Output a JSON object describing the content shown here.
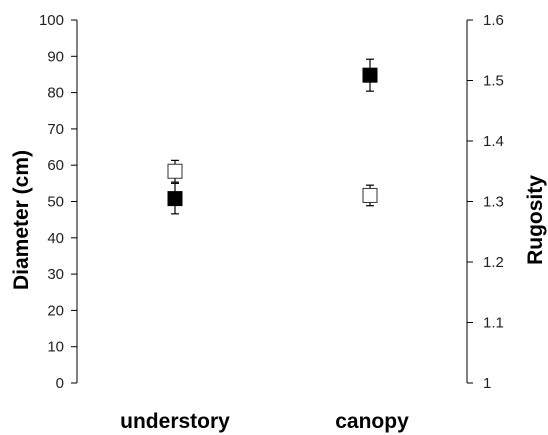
{
  "chart_data": {
    "type": "scatter",
    "categories": [
      "understory",
      "canopy"
    ],
    "left_axis": {
      "label": "Diameter (cm)",
      "ylim": [
        0,
        100
      ],
      "ticks": [
        0,
        10,
        20,
        30,
        40,
        50,
        60,
        70,
        80,
        90,
        100
      ],
      "tick_labels": [
        "0",
        "10",
        "20",
        "30",
        "40",
        "50",
        "60",
        "70",
        "80",
        "90",
        "100"
      ]
    },
    "right_axis": {
      "label": "Rugosity",
      "ylim": [
        1,
        1.6
      ],
      "ticks": [
        1,
        1.1,
        1.2,
        1.3,
        1.4,
        1.5,
        1.6
      ],
      "tick_labels": [
        "1",
        "1.1",
        "1.2",
        "1.3",
        "1.4",
        "1.5",
        "1.6"
      ]
    },
    "series": [
      {
        "axis": "left",
        "marker": "filled-square",
        "color": "#000000",
        "values": [
          50.8,
          84.8
        ],
        "error": [
          4.2,
          4.4
        ]
      },
      {
        "axis": "right",
        "marker": "open-square",
        "color": "#ffffff",
        "values": [
          1.35,
          1.31
        ],
        "error": [
          0.018,
          0.017
        ]
      }
    ],
    "grid": false,
    "legend": "none"
  }
}
